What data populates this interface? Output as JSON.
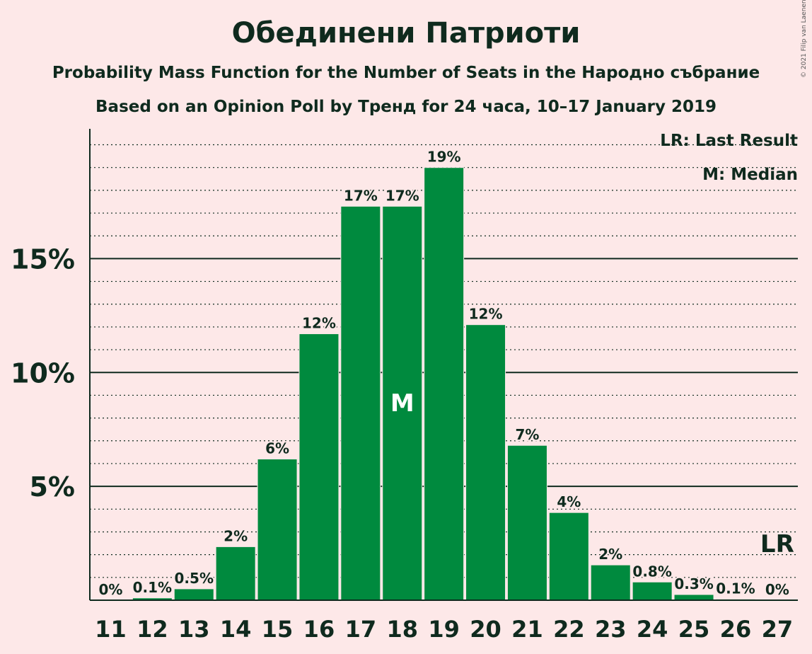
{
  "title": "Обединени Патриоти",
  "subtitle1": "Probability Mass Function for the Number of Seats in the Народно събрание",
  "subtitle2": "Based on an Opinion Poll by Тренд for 24 часа, 10–17 January 2019",
  "copyright": "© 2021 Filip van Laenen",
  "legend": {
    "lr": "LR: Last Result",
    "median": "M: Median"
  },
  "colors": {
    "bar": "#008A3E",
    "background": "#FDE8E8",
    "text": "#0F2A1E"
  },
  "chart_data": {
    "type": "bar",
    "categories": [
      "11",
      "12",
      "13",
      "14",
      "15",
      "16",
      "17",
      "18",
      "19",
      "20",
      "21",
      "22",
      "23",
      "24",
      "25",
      "26",
      "27"
    ],
    "values": [
      0,
      0.1,
      0.5,
      2.35,
      6.2,
      11.7,
      17.3,
      17.3,
      19.0,
      12.1,
      6.8,
      3.85,
      1.55,
      0.8,
      0.25,
      0.05,
      0
    ],
    "data_labels": [
      "0%",
      "0.1%",
      "0.5%",
      "2%",
      "6%",
      "12%",
      "17%",
      "17%",
      "19%",
      "12%",
      "7%",
      "4%",
      "2%",
      "0.8%",
      "0.3%",
      "0.1%",
      "0%"
    ],
    "ylim": [
      0,
      20.7
    ],
    "yticks": [
      5,
      10,
      15
    ],
    "ytick_labels": [
      "5%",
      "10%",
      "15%"
    ],
    "minor_grid_step": 1,
    "median_category": "18",
    "median_marker": "M",
    "last_result_category": "27",
    "last_result_marker": "LR"
  }
}
